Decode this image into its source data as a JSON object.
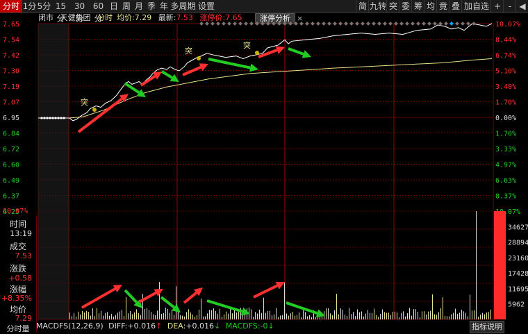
{
  "toolbar": {
    "left_tabs": [
      "分时",
      "1分",
      "5分",
      "15分",
      "30分",
      "60分",
      "日",
      "周",
      "月",
      "季",
      "年",
      "多周期",
      "设置"
    ],
    "right_tabs": [
      "简",
      "九转",
      "突",
      "委",
      "筹",
      "均",
      "竟",
      "叠",
      "加自选",
      "+",
      "-",
      "◀"
    ]
  },
  "info": {
    "status": "闭市",
    "stock_name": "天健集团",
    "chart_type": "分时",
    "avg_label": "均价:",
    "avg_value": "7.29",
    "latest_label": "最新:",
    "latest_value": "7.53",
    "limit_label": "涨停价:",
    "limit_value": "7.65",
    "limit_analysis_button": "涨停分析",
    "close_icon": "×"
  },
  "price_axis": [
    "7.65",
    "7.54",
    "7.42",
    "7.30",
    "7.19",
    "7.07",
    "6.95",
    "6.84",
    "6.72",
    "6.60",
    "6.49",
    "6.37",
    "6.25"
  ],
  "pct_axis": [
    "10.07%",
    "8.44%",
    "6.74%",
    "5.10%",
    "3.40%",
    "1.70%",
    "0.00%",
    "1.70%",
    "3.33%",
    "4.97%",
    "6.63%",
    "8.37%",
    "10.07%"
  ],
  "volume_axis": [
    "34627",
    "28894",
    "23160",
    "17428",
    "11695",
    "5962"
  ],
  "left_panel": {
    "time_label": "时间",
    "time_value": "13:19",
    "deal_label": "成交",
    "deal_value": "7.53",
    "change_label": "涨跌",
    "change_value": "+0.58",
    "change_pct_label": "涨幅",
    "change_pct_value": "+8.35%",
    "avg_label": "均价",
    "avg_value": "7.29",
    "vol_label": "分时量"
  },
  "markers": {
    "surge": "突"
  },
  "bottom": {
    "macd": "MACDFS(12,26,9)",
    "diff_label": "DIFF:",
    "diff_value": "+0.016",
    "dea_label": "DEA:",
    "dea_value": "+0.016",
    "macd_label": "MACDFS:",
    "macd_value": "-0",
    "desc_button": "指标说明"
  },
  "colors": {
    "up": "#ff3030",
    "down": "#22cc22",
    "avg": "#e8e08a",
    "price": "#ffffff",
    "grid": "#6a0000"
  }
}
